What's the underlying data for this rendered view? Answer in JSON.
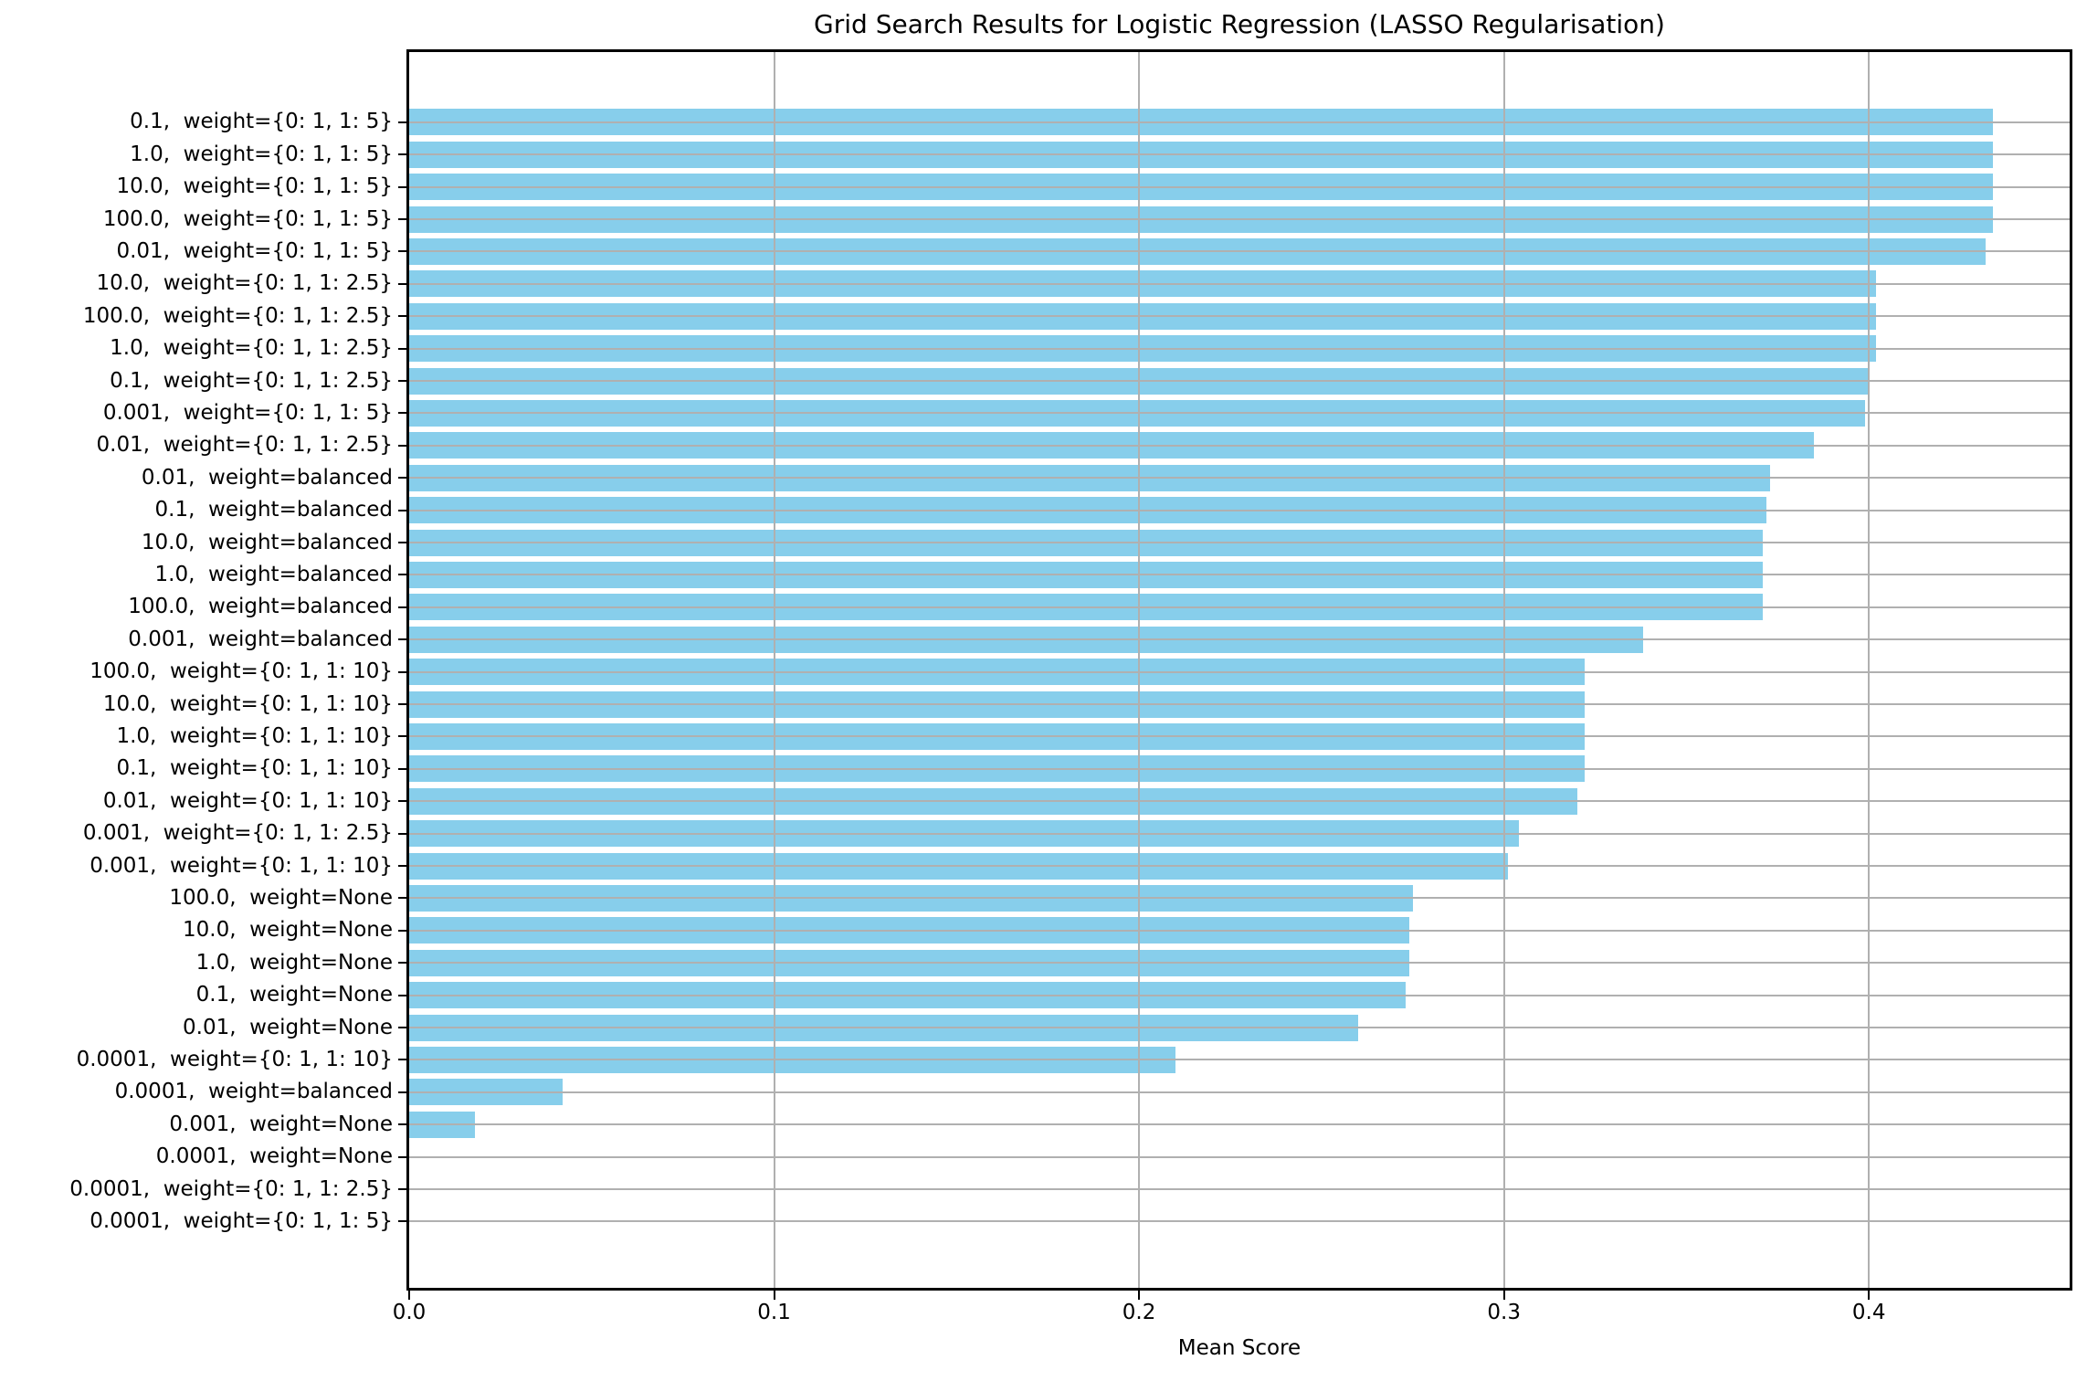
{
  "title": "Grid Search Results for Logistic Regression (LASSO Regularisation)",
  "chart_data": {
    "type": "bar",
    "orientation": "horizontal",
    "title": "Grid Search Results for Logistic Regression (LASSO Regularisation)",
    "xlabel": "Mean Score",
    "ylabel": "",
    "xlim": [
      0.0,
      0.455
    ],
    "xtick_values": [
      0.0,
      0.1,
      0.2,
      0.3,
      0.4
    ],
    "xtick_labels": [
      "0.0",
      "0.1",
      "0.2",
      "0.3",
      "0.4"
    ],
    "grid": true,
    "grid_color": "#b0b0b0",
    "bar_color": "#87CEEB",
    "categories": [
      "0.1,  weight={0: 1, 1: 5}",
      "1.0,  weight={0: 1, 1: 5}",
      "10.0,  weight={0: 1, 1: 5}",
      "100.0,  weight={0: 1, 1: 5}",
      "0.01,  weight={0: 1, 1: 5}",
      "10.0,  weight={0: 1, 1: 2.5}",
      "100.0,  weight={0: 1, 1: 2.5}",
      "1.0,  weight={0: 1, 1: 2.5}",
      "0.1,  weight={0: 1, 1: 2.5}",
      "0.001,  weight={0: 1, 1: 5}",
      "0.01,  weight={0: 1, 1: 2.5}",
      "0.01,  weight=balanced",
      "0.1,  weight=balanced",
      "10.0,  weight=balanced",
      "1.0,  weight=balanced",
      "100.0,  weight=balanced",
      "0.001,  weight=balanced",
      "100.0,  weight={0: 1, 1: 10}",
      "10.0,  weight={0: 1, 1: 10}",
      "1.0,  weight={0: 1, 1: 10}",
      "0.1,  weight={0: 1, 1: 10}",
      "0.01,  weight={0: 1, 1: 10}",
      "0.001,  weight={0: 1, 1: 2.5}",
      "0.001,  weight={0: 1, 1: 10}",
      "100.0,  weight=None",
      "10.0,  weight=None",
      "1.0,  weight=None",
      "0.1,  weight=None",
      "0.01,  weight=None",
      "0.0001,  weight={0: 1, 1: 10}",
      "0.0001,  weight=balanced",
      "0.001,  weight=None",
      "0.0001,  weight=None",
      "0.0001,  weight={0: 1, 1: 2.5}",
      "0.0001,  weight={0: 1, 1: 5}"
    ],
    "values": [
      0.434,
      0.434,
      0.434,
      0.434,
      0.432,
      0.402,
      0.402,
      0.402,
      0.4,
      0.399,
      0.385,
      0.373,
      0.372,
      0.371,
      0.371,
      0.371,
      0.338,
      0.322,
      0.322,
      0.322,
      0.322,
      0.32,
      0.304,
      0.301,
      0.275,
      0.274,
      0.274,
      0.273,
      0.26,
      0.21,
      0.042,
      0.018,
      0.0,
      0.0,
      0.0
    ]
  }
}
